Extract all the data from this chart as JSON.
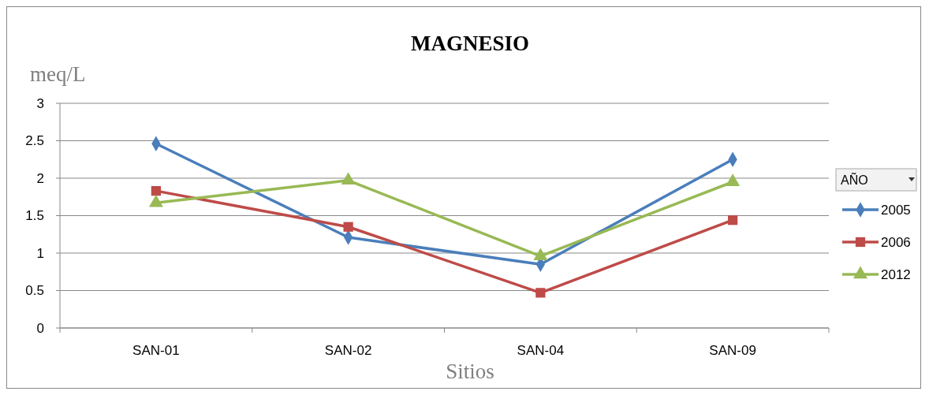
{
  "chart_data": {
    "type": "line",
    "title": "MAGNESIO",
    "ylabel": "meq/L",
    "xlabel": "Sitios",
    "legend_title": "AÑO",
    "categories": [
      "SAN-01",
      "SAN-02",
      "SAN-04",
      "SAN-09"
    ],
    "series": [
      {
        "name": "2005",
        "color": "#4a7ebb",
        "marker": "diamond",
        "values": [
          2.46,
          1.21,
          0.85,
          2.25
        ]
      },
      {
        "name": "2006",
        "color": "#be4b48",
        "marker": "square",
        "values": [
          1.83,
          1.35,
          0.47,
          1.44
        ]
      },
      {
        "name": "2012",
        "color": "#98b954",
        "marker": "triangle",
        "values": [
          1.67,
          1.97,
          0.96,
          1.95
        ]
      }
    ],
    "ylim": [
      0,
      3
    ],
    "yticks": [
      0,
      0.5,
      1,
      1.5,
      2,
      2.5,
      3
    ],
    "grid": "y",
    "legend": "right",
    "line_style": "solid"
  }
}
